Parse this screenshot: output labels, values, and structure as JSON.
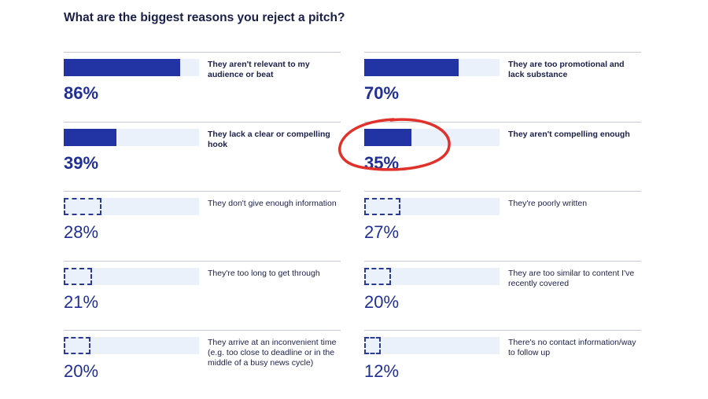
{
  "chart_data": {
    "type": "bar",
    "title": "What are the biggest reasons you reject a pitch?",
    "unit": "%",
    "xlim": [
      0,
      100
    ],
    "colors": {
      "bar": "#2233a3",
      "track": "#ebf1fb",
      "text": "#1f2f96",
      "annotation": "#e0322b"
    },
    "bars": [
      {
        "label": "They aren't relevant to my audience or beat",
        "value": 86,
        "value_label": "86%",
        "style": "solid"
      },
      {
        "label": "They are too promotional and lack substance",
        "value": 70,
        "value_label": "70%",
        "style": "solid"
      },
      {
        "label": "They lack a clear or compelling hook",
        "value": 39,
        "value_label": "39%",
        "style": "solid"
      },
      {
        "label": "They aren't compelling enough",
        "value": 35,
        "value_label": "35%",
        "style": "solid",
        "annotation": "red-circle-highlight"
      },
      {
        "label": "They don't give enough information",
        "value": 28,
        "value_label": "28%",
        "style": "outline"
      },
      {
        "label": "They're poorly written",
        "value": 27,
        "value_label": "27%",
        "style": "outline"
      },
      {
        "label": "They're too long to get through",
        "value": 21,
        "value_label": "21%",
        "style": "outline"
      },
      {
        "label": "They are too similar to content I've recently covered",
        "value": 20,
        "value_label": "20%",
        "style": "outline"
      },
      {
        "label": "They arrive at an inconvenient time (e.g. too close to deadline or in the middle of a busy news cycle)",
        "value": 20,
        "value_label": "20%",
        "style": "outline"
      },
      {
        "label": "There's no contact information/way to follow up",
        "value": 12,
        "value_label": "12%",
        "style": "outline"
      }
    ]
  }
}
